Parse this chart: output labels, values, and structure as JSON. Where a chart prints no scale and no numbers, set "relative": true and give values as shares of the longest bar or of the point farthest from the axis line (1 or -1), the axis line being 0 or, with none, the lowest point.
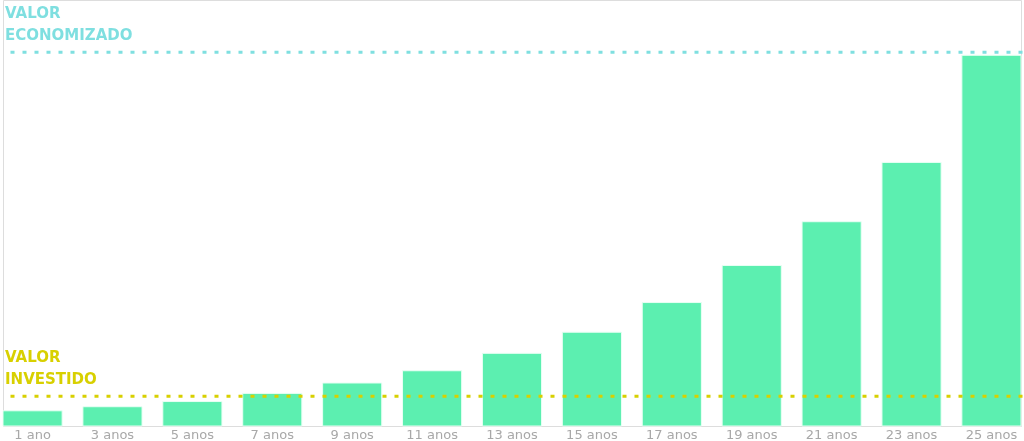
{
  "chart_data": {
    "type": "bar",
    "relative": true,
    "grid": false,
    "categories": [
      "1 ano",
      "3 anos",
      "5 anos",
      "7 anos",
      "9 anos",
      "11 anos",
      "13 anos",
      "15 anos",
      "17 anos",
      "19 anos",
      "21 anos",
      "23 anos",
      "25 anos"
    ],
    "values": [
      0.041,
      0.052,
      0.066,
      0.088,
      0.116,
      0.149,
      0.196,
      0.253,
      0.333,
      0.433,
      0.551,
      0.711,
      1
    ],
    "color": "#5cefb0",
    "ref_lines": [
      {
        "axis": "y",
        "value": 0.08,
        "label": "VALOR\nINVESTIDO",
        "color": "#d8d000",
        "line_style": "dotted"
      },
      {
        "axis": "y",
        "value": 1.008,
        "label": "VALOR\nECONOMIZADO",
        "color": "#7fdfe0",
        "line_style": "dotted"
      }
    ]
  }
}
